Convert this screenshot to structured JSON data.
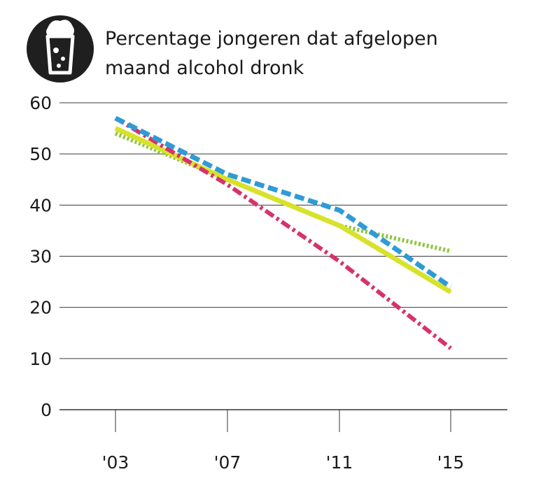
{
  "title": {
    "line1": "Percentage jongeren dat afgelopen",
    "line2": "maand alcohol dronk",
    "icon": "beer-glass-icon"
  },
  "chart_data": {
    "type": "line",
    "title": "Percentage jongeren dat afgelopen maand alcohol dronk",
    "xlabel": "",
    "ylabel": "",
    "x": [
      2003,
      2007,
      2011,
      2015
    ],
    "x_tick_labels": [
      "'03",
      "'07",
      "'11",
      "'15"
    ],
    "ylim": [
      0,
      60
    ],
    "y_ticks": [
      0,
      10,
      20,
      30,
      40,
      50,
      60
    ],
    "grid": "horizontal",
    "legend": "none",
    "series": [
      {
        "style": "dashed",
        "color": "#2f9bd6",
        "values": [
          57,
          46,
          39,
          24
        ]
      },
      {
        "style": "solid",
        "color": "#d7e22a",
        "values": [
          55,
          45,
          36,
          23
        ]
      },
      {
        "style": "dotted",
        "color": "#8dc63f",
        "values": [
          54,
          45,
          36,
          31
        ]
      },
      {
        "style": "dash-dot",
        "color": "#d6336c",
        "values": [
          57,
          44,
          29,
          12
        ]
      }
    ]
  }
}
